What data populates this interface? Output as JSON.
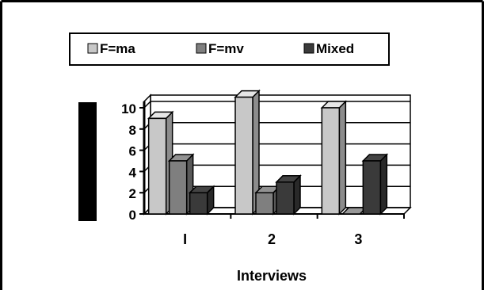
{
  "chart_data": {
    "type": "bar",
    "style": "3d-clustered-column",
    "categories": [
      "I",
      "2",
      "3"
    ],
    "xlabel": "Interviews",
    "ylabel": "",
    "ylim": [
      0,
      10
    ],
    "yticks": [
      "0",
      "2",
      "4",
      "6",
      "8",
      "10"
    ],
    "grid": true,
    "legend_position": "top",
    "series": [
      {
        "name": "F=ma",
        "values": [
          9,
          11,
          10
        ],
        "color": "#c8c8c8"
      },
      {
        "name": "F=mv",
        "values": [
          5,
          2,
          0
        ],
        "color": "#7f7f7f"
      },
      {
        "name": "Mixed",
        "values": [
          2,
          3,
          5
        ],
        "color": "#3a3a3a"
      }
    ]
  }
}
